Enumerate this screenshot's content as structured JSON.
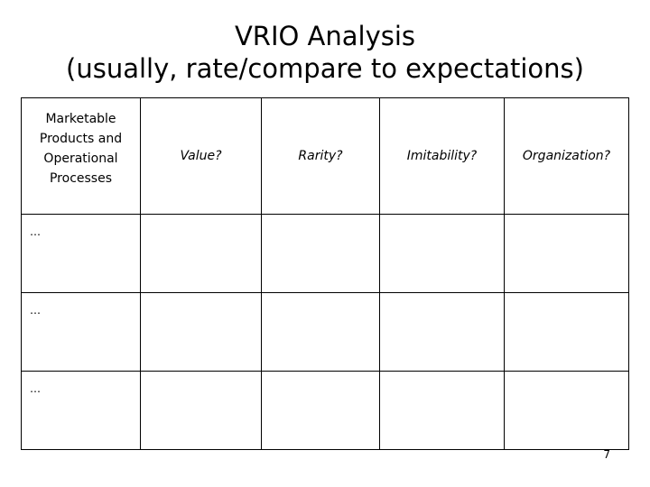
{
  "slide": {
    "title_line1": "VRIO Analysis",
    "title_line2": "(usually, rate/compare to expectations)",
    "page_number": "7"
  },
  "table": {
    "headers": [
      "Marketable Products and Operational Processes",
      "Value?",
      "Rarity?",
      "Imitability?",
      "Organization?"
    ],
    "rows": [
      [
        "…",
        "",
        "",
        "",
        ""
      ],
      [
        "…",
        "",
        "",
        "",
        ""
      ],
      [
        "…",
        "",
        "",
        "",
        ""
      ]
    ]
  }
}
